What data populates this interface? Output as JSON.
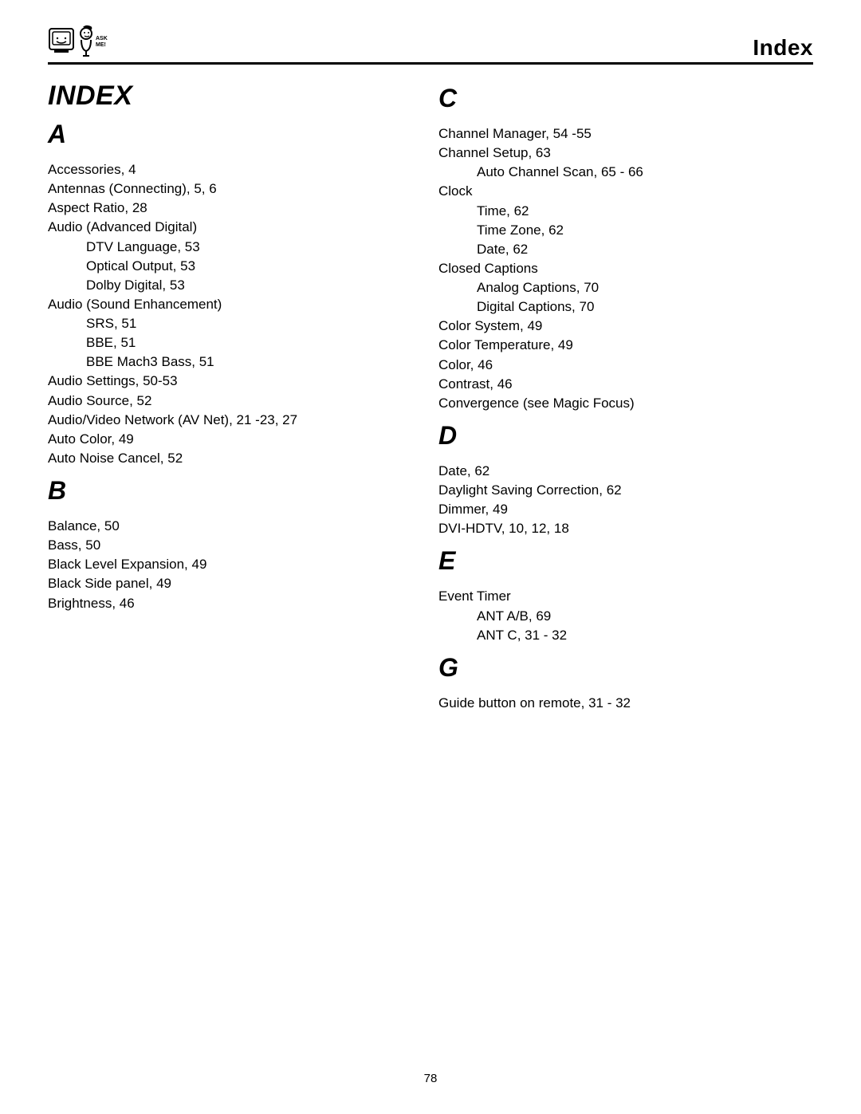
{
  "header": {
    "title": "Index",
    "logo_label": "ASK ME!"
  },
  "pageNumber": "78",
  "left": {
    "indexHeading": "INDEX",
    "sections": [
      {
        "letter": "A",
        "entries": [
          {
            "text": "Accessories, 4",
            "indent": false
          },
          {
            "text": "Antennas (Connecting), 5, 6",
            "indent": false
          },
          {
            "text": "Aspect Ratio, 28",
            "indent": false
          },
          {
            "text": "Audio (Advanced Digital)",
            "indent": false
          },
          {
            "text": "DTV Language, 53",
            "indent": true
          },
          {
            "text": "Optical Output, 53",
            "indent": true
          },
          {
            "text": "Dolby Digital, 53",
            "indent": true
          },
          {
            "text": "Audio (Sound Enhancement)",
            "indent": false
          },
          {
            "text": "SRS, 51",
            "indent": true
          },
          {
            "text": "BBE, 51",
            "indent": true
          },
          {
            "text": "BBE Mach3 Bass, 51",
            "indent": true
          },
          {
            "text": "Audio Settings, 50-53",
            "indent": false
          },
          {
            "text": "Audio Source, 52",
            "indent": false
          },
          {
            "text": "Audio/Video Network (AV Net), 21 -23, 27",
            "indent": false
          },
          {
            "text": "Auto Color, 49",
            "indent": false
          },
          {
            "text": "Auto Noise Cancel, 52",
            "indent": false
          }
        ]
      },
      {
        "letter": "B",
        "entries": [
          {
            "text": "Balance, 50",
            "indent": false
          },
          {
            "text": "Bass, 50",
            "indent": false
          },
          {
            "text": "Black Level Expansion, 49",
            "indent": false
          },
          {
            "text": "Black Side panel, 49",
            "indent": false
          },
          {
            "text": "Brightness, 46",
            "indent": false
          }
        ]
      }
    ]
  },
  "right": {
    "sections": [
      {
        "letter": "C",
        "entries": [
          {
            "text": "Channel Manager, 54 -55",
            "indent": false
          },
          {
            "text": "Channel Setup, 63",
            "indent": false
          },
          {
            "text": "Auto Channel Scan, 65 - 66",
            "indent": true
          },
          {
            "text": "Clock",
            "indent": false
          },
          {
            "text": "Time, 62",
            "indent": true
          },
          {
            "text": "Time Zone, 62",
            "indent": true
          },
          {
            "text": "Date, 62",
            "indent": true
          },
          {
            "text": "Closed Captions",
            "indent": false
          },
          {
            "text": "Analog Captions, 70",
            "indent": true
          },
          {
            "text": "Digital Captions, 70",
            "indent": true
          },
          {
            "text": "Color System, 49",
            "indent": false
          },
          {
            "text": "Color Temperature, 49",
            "indent": false
          },
          {
            "text": "Color, 46",
            "indent": false
          },
          {
            "text": "Contrast, 46",
            "indent": false
          },
          {
            "text": "Convergence (see Magic Focus)",
            "indent": false
          }
        ]
      },
      {
        "letter": "D",
        "entries": [
          {
            "text": "Date, 62",
            "indent": false
          },
          {
            "text": "Daylight Saving Correction, 62",
            "indent": false
          },
          {
            "text": "Dimmer, 49",
            "indent": false
          },
          {
            "text": "DVI-HDTV, 10, 12, 18",
            "indent": false
          }
        ]
      },
      {
        "letter": "E",
        "entries": [
          {
            "text": "Event Timer",
            "indent": false
          },
          {
            "text": "ANT A/B, 69",
            "indent": true
          },
          {
            "text": "ANT C, 31 - 32",
            "indent": true
          }
        ]
      },
      {
        "letter": "G",
        "entries": [
          {
            "text": "Guide button on remote, 31 - 32",
            "indent": false
          }
        ]
      }
    ]
  }
}
